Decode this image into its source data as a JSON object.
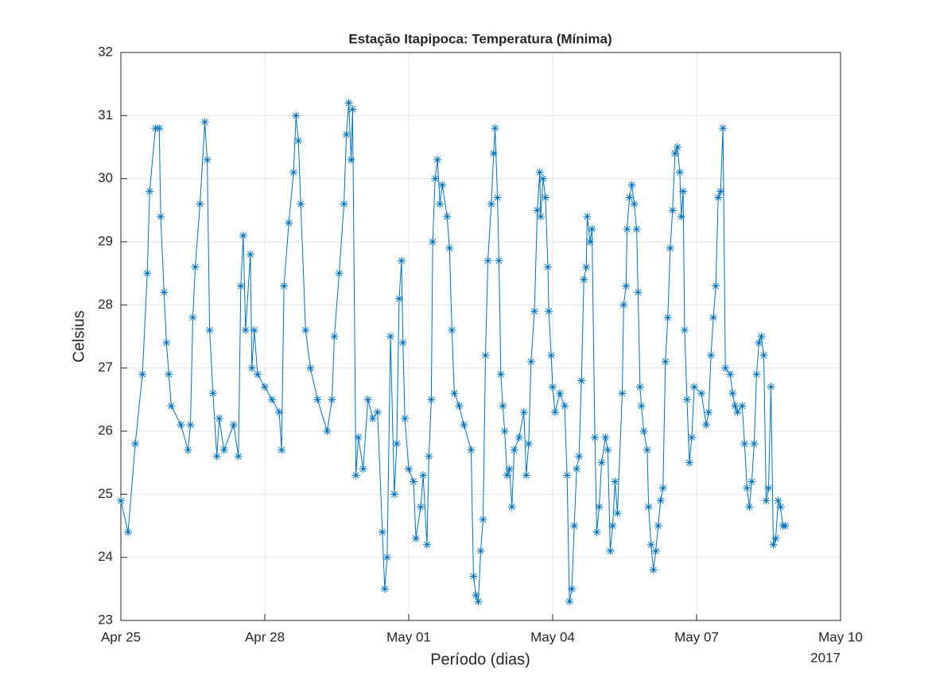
{
  "chart_data": {
    "type": "line",
    "title": "Estação Itapipoca: Temperatura (Mínima)",
    "x_label": "Período (dias)",
    "y_label": "Celsius",
    "year_label": "2017",
    "color": "#0072bd",
    "grid": true,
    "marker": "asterisk",
    "xlim": [
      0,
      15
    ],
    "ylim": [
      23,
      32
    ],
    "xticks": [
      {
        "value": 0,
        "label": "Apr 25"
      },
      {
        "value": 3,
        "label": "Apr 28"
      },
      {
        "value": 6,
        "label": "May 01"
      },
      {
        "value": 9,
        "label": "May 04"
      },
      {
        "value": 12,
        "label": "May 07"
      },
      {
        "value": 15,
        "label": "May 10"
      }
    ],
    "yticks": [
      23,
      24,
      25,
      26,
      27,
      28,
      29,
      30,
      31,
      32
    ],
    "x": [
      0,
      0.15,
      0.3,
      0.45,
      0.55,
      0.6,
      0.72,
      0.8,
      0.83,
      0.9,
      0.95,
      1.0,
      1.05,
      1.25,
      1.4,
      1.45,
      1.5,
      1.55,
      1.65,
      1.75,
      1.8,
      1.85,
      1.92,
      2.0,
      2.05,
      2.15,
      2.35,
      2.45,
      2.5,
      2.55,
      2.6,
      2.7,
      2.73,
      2.78,
      2.85,
      3.0,
      3.15,
      3.3,
      3.35,
      3.4,
      3.5,
      3.6,
      3.65,
      3.7,
      3.75,
      3.85,
      3.95,
      4.1,
      4.3,
      4.4,
      4.45,
      4.55,
      4.65,
      4.7,
      4.75,
      4.8,
      4.83,
      4.9,
      4.95,
      5.05,
      5.15,
      5.25,
      5.35,
      5.45,
      5.5,
      5.55,
      5.62,
      5.7,
      5.75,
      5.8,
      5.85,
      5.88,
      5.92,
      6.0,
      6.1,
      6.15,
      6.25,
      6.3,
      6.38,
      6.42,
      6.47,
      6.5,
      6.55,
      6.6,
      6.65,
      6.7,
      6.8,
      6.85,
      6.9,
      6.95,
      7.05,
      7.15,
      7.3,
      7.35,
      7.4,
      7.45,
      7.5,
      7.55,
      7.6,
      7.65,
      7.72,
      7.77,
      7.8,
      7.85,
      7.88,
      7.92,
      7.96,
      8.0,
      8.05,
      8.1,
      8.15,
      8.2,
      8.3,
      8.4,
      8.45,
      8.5,
      8.55,
      8.62,
      8.68,
      8.73,
      8.75,
      8.8,
      8.85,
      8.9,
      8.92,
      8.97,
      9.0,
      9.05,
      9.15,
      9.25,
      9.3,
      9.35,
      9.4,
      9.45,
      9.5,
      9.55,
      9.6,
      9.65,
      9.7,
      9.72,
      9.78,
      9.82,
      9.88,
      9.92,
      9.97,
      10.02,
      10.1,
      10.15,
      10.2,
      10.25,
      10.3,
      10.35,
      10.45,
      10.48,
      10.53,
      10.55,
      10.6,
      10.65,
      10.7,
      10.75,
      10.78,
      10.82,
      10.85,
      10.9,
      10.97,
      11.0,
      11.05,
      11.1,
      11.15,
      11.2,
      11.25,
      11.3,
      11.35,
      11.4,
      11.45,
      11.5,
      11.55,
      11.6,
      11.65,
      11.68,
      11.72,
      11.75,
      11.8,
      11.85,
      11.9,
      11.95,
      12.1,
      12.2,
      12.25,
      12.3,
      12.35,
      12.4,
      12.45,
      12.5,
      12.55,
      12.6,
      12.7,
      12.75,
      12.8,
      12.85,
      12.95,
      13.0,
      13.05,
      13.1,
      13.15,
      13.2,
      13.25,
      13.3,
      13.35,
      13.4,
      13.45,
      13.5,
      13.55,
      13.6,
      13.65,
      13.7,
      13.75,
      13.8,
      13.85
    ],
    "values": [
      24.9,
      24.4,
      25.8,
      26.9,
      28.5,
      29.8,
      30.8,
      30.8,
      29.4,
      28.2,
      27.4,
      26.9,
      26.4,
      26.1,
      25.7,
      26.1,
      27.8,
      28.6,
      29.6,
      30.9,
      30.3,
      27.6,
      26.6,
      25.6,
      26.2,
      25.7,
      26.1,
      25.6,
      28.3,
      29.1,
      27.6,
      28.8,
      27.0,
      27.6,
      26.9,
      26.7,
      26.5,
      26.3,
      25.7,
      28.3,
      29.3,
      30.1,
      31.0,
      30.6,
      29.6,
      27.6,
      27.0,
      26.5,
      26.0,
      26.5,
      27.5,
      28.5,
      29.6,
      30.7,
      31.2,
      30.3,
      31.1,
      25.3,
      25.9,
      25.4,
      26.5,
      26.2,
      26.3,
      24.4,
      23.5,
      24.0,
      27.5,
      25.0,
      25.8,
      28.1,
      28.7,
      27.4,
      26.2,
      25.4,
      25.2,
      24.3,
      24.8,
      25.3,
      24.2,
      25.6,
      26.5,
      29.0,
      30.0,
      30.3,
      29.6,
      29.9,
      29.4,
      28.9,
      27.6,
      26.6,
      26.4,
      26.1,
      25.7,
      23.7,
      23.4,
      23.3,
      24.1,
      24.6,
      27.2,
      28.7,
      29.6,
      30.4,
      30.8,
      29.7,
      28.7,
      26.9,
      26.4,
      26.0,
      25.3,
      25.4,
      24.8,
      25.7,
      25.9,
      26.3,
      25.3,
      25.8,
      27.1,
      27.9,
      29.5,
      30.1,
      29.4,
      30.0,
      29.7,
      28.6,
      27.9,
      27.2,
      26.7,
      26.3,
      26.6,
      26.4,
      25.3,
      23.3,
      23.5,
      24.5,
      25.4,
      25.6,
      26.8,
      28.4,
      28.6,
      29.4,
      29.0,
      29.2,
      25.9,
      24.4,
      24.8,
      25.5,
      25.9,
      25.7,
      24.1,
      24.5,
      25.2,
      24.7,
      26.6,
      28.0,
      28.3,
      29.2,
      29.7,
      29.9,
      29.6,
      29.2,
      28.2,
      26.7,
      26.4,
      26.0,
      25.7,
      24.8,
      24.2,
      23.8,
      24.1,
      24.5,
      24.9,
      25.1,
      27.1,
      27.8,
      28.9,
      29.5,
      30.4,
      30.5,
      30.1,
      29.4,
      29.8,
      27.6,
      26.5,
      25.5,
      25.9,
      26.7,
      26.6,
      26.1,
      26.3,
      27.2,
      27.8,
      28.3,
      29.7,
      29.8,
      30.8,
      27.0,
      26.9,
      26.6,
      26.4,
      26.3,
      26.4,
      25.8,
      25.1,
      24.8,
      25.2,
      25.8,
      26.9,
      27.4,
      27.5,
      27.2,
      24.9,
      25.1,
      26.7,
      24.2,
      24.3,
      24.9,
      24.8,
      24.5,
      24.5
    ]
  }
}
